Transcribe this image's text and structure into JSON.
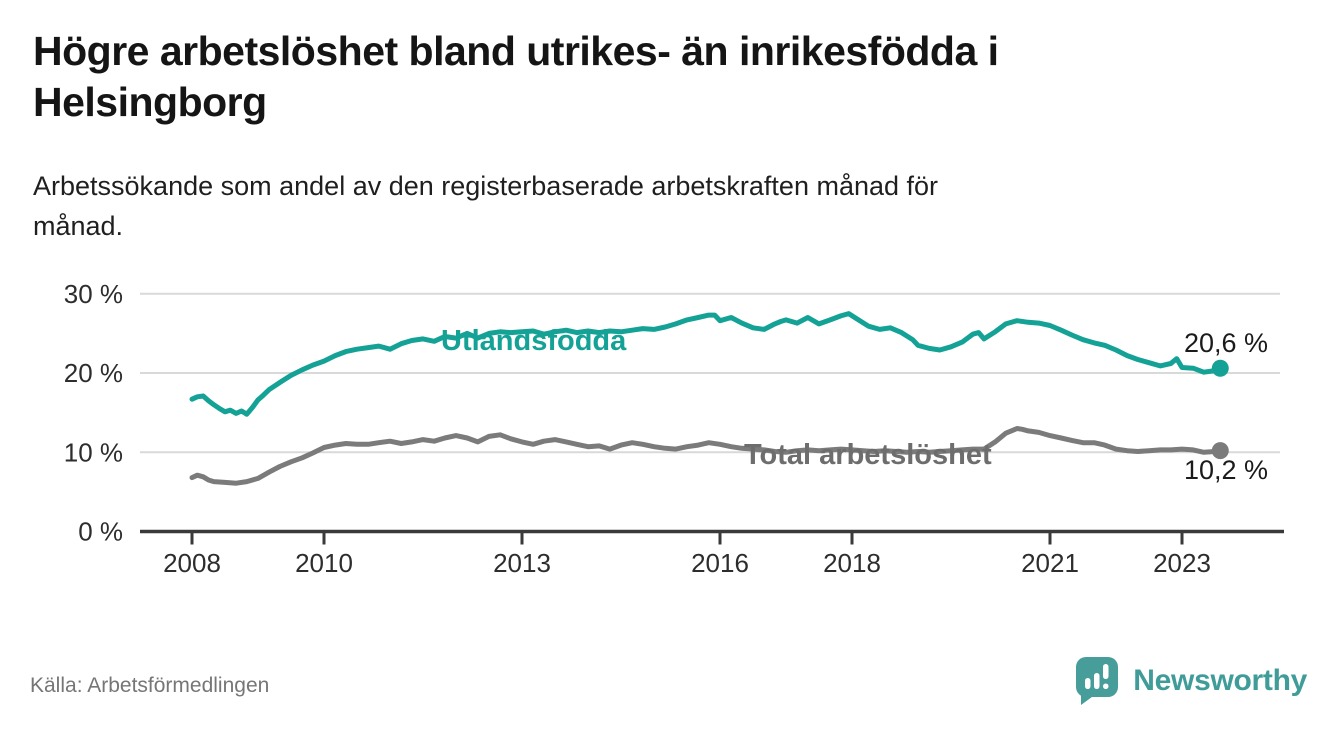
{
  "colors": {
    "teal": "#14a296",
    "gray": "#7b7b7b",
    "gray_label": "#6d6d6d",
    "grid": "#d9d9d9",
    "axis": "#3a3a3a",
    "value_label": "#1b1b1b",
    "logo_teal": "#479d99"
  },
  "footer": {
    "source": "Källa: Arbetsförmedlingen",
    "brand": "Newsworthy"
  },
  "chart_data": {
    "type": "line",
    "title": "Högre arbetslöshet bland utrikes- än inrikesfödda i Helsingborg",
    "title_lines": [
      "Högre arbetslöshet bland utrikes- än inrikesfödda i",
      "Helsingborg"
    ],
    "subtitle": "Arbetssökande som andel av den registerbaserade arbetskraften månad för månad.",
    "subtitle_lines": [
      "Arbetssökande som andel av den registerbaserade arbetskraften månad för",
      "månad."
    ],
    "xlabel": "",
    "ylabel": "",
    "x_ticks": [
      2008,
      2010,
      2013,
      2016,
      2018,
      2021,
      2023
    ],
    "y_ticks": [
      0,
      10,
      20,
      30
    ],
    "y_tick_suffix": " %",
    "xlim": [
      2007.5,
      2024.3
    ],
    "ylim": [
      0,
      30
    ],
    "grid": "horizontal",
    "legend_position": "inline-labels",
    "series": [
      {
        "id": "utlandsfodda",
        "name": "Utlandsfödda",
        "color": "#14a296",
        "label_color": "#14a296",
        "end_label": "20,6 %",
        "end_value": 20.6,
        "points": [
          [
            2008.0,
            16.7
          ],
          [
            2008.08,
            17.0
          ],
          [
            2008.17,
            17.1
          ],
          [
            2008.25,
            16.5
          ],
          [
            2008.33,
            16.0
          ],
          [
            2008.42,
            15.5
          ],
          [
            2008.5,
            15.1
          ],
          [
            2008.58,
            15.3
          ],
          [
            2008.67,
            14.9
          ],
          [
            2008.75,
            15.2
          ],
          [
            2008.83,
            14.8
          ],
          [
            2008.92,
            15.7
          ],
          [
            2009.0,
            16.6
          ],
          [
            2009.08,
            17.2
          ],
          [
            2009.17,
            17.9
          ],
          [
            2009.33,
            18.8
          ],
          [
            2009.5,
            19.7
          ],
          [
            2009.67,
            20.4
          ],
          [
            2009.83,
            21.0
          ],
          [
            2010.0,
            21.5
          ],
          [
            2010.17,
            22.2
          ],
          [
            2010.33,
            22.7
          ],
          [
            2010.5,
            23.0
          ],
          [
            2010.67,
            23.2
          ],
          [
            2010.83,
            23.4
          ],
          [
            2011.0,
            23.0
          ],
          [
            2011.17,
            23.7
          ],
          [
            2011.33,
            24.1
          ],
          [
            2011.5,
            24.3
          ],
          [
            2011.67,
            24.0
          ],
          [
            2011.83,
            24.6
          ],
          [
            2012.0,
            24.4
          ],
          [
            2012.17,
            25.0
          ],
          [
            2012.33,
            24.4
          ],
          [
            2012.5,
            25.0
          ],
          [
            2012.67,
            25.2
          ],
          [
            2012.83,
            25.1
          ],
          [
            2013.0,
            25.2
          ],
          [
            2013.17,
            25.3
          ],
          [
            2013.33,
            24.9
          ],
          [
            2013.5,
            25.2
          ],
          [
            2013.67,
            25.4
          ],
          [
            2013.83,
            25.1
          ],
          [
            2014.0,
            25.3
          ],
          [
            2014.17,
            25.1
          ],
          [
            2014.33,
            25.3
          ],
          [
            2014.5,
            25.2
          ],
          [
            2014.67,
            25.4
          ],
          [
            2014.83,
            25.6
          ],
          [
            2015.0,
            25.5
          ],
          [
            2015.17,
            25.8
          ],
          [
            2015.33,
            26.2
          ],
          [
            2015.5,
            26.7
          ],
          [
            2015.67,
            27.0
          ],
          [
            2015.83,
            27.3
          ],
          [
            2015.92,
            27.3
          ],
          [
            2016.0,
            26.6
          ],
          [
            2016.17,
            27.0
          ],
          [
            2016.33,
            26.3
          ],
          [
            2016.5,
            25.7
          ],
          [
            2016.67,
            25.5
          ],
          [
            2016.83,
            26.2
          ],
          [
            2016.92,
            26.5
          ],
          [
            2017.0,
            26.7
          ],
          [
            2017.17,
            26.3
          ],
          [
            2017.33,
            27.0
          ],
          [
            2017.5,
            26.2
          ],
          [
            2017.67,
            26.7
          ],
          [
            2017.83,
            27.2
          ],
          [
            2017.95,
            27.5
          ],
          [
            2018.08,
            26.8
          ],
          [
            2018.25,
            25.9
          ],
          [
            2018.42,
            25.5
          ],
          [
            2018.58,
            25.7
          ],
          [
            2018.75,
            25.1
          ],
          [
            2018.92,
            24.2
          ],
          [
            2019.0,
            23.5
          ],
          [
            2019.17,
            23.1
          ],
          [
            2019.33,
            22.9
          ],
          [
            2019.5,
            23.3
          ],
          [
            2019.67,
            23.9
          ],
          [
            2019.83,
            24.9
          ],
          [
            2019.92,
            25.1
          ],
          [
            2020.0,
            24.3
          ],
          [
            2020.17,
            25.2
          ],
          [
            2020.33,
            26.2
          ],
          [
            2020.5,
            26.6
          ],
          [
            2020.67,
            26.4
          ],
          [
            2020.83,
            26.3
          ],
          [
            2021.0,
            26.0
          ],
          [
            2021.17,
            25.4
          ],
          [
            2021.33,
            24.8
          ],
          [
            2021.5,
            24.2
          ],
          [
            2021.67,
            23.8
          ],
          [
            2021.83,
            23.5
          ],
          [
            2022.0,
            22.9
          ],
          [
            2022.17,
            22.2
          ],
          [
            2022.33,
            21.7
          ],
          [
            2022.5,
            21.3
          ],
          [
            2022.67,
            20.9
          ],
          [
            2022.83,
            21.2
          ],
          [
            2022.92,
            21.8
          ],
          [
            2023.0,
            20.7
          ],
          [
            2023.17,
            20.6
          ],
          [
            2023.33,
            20.1
          ],
          [
            2023.5,
            20.3
          ],
          [
            2023.58,
            20.6
          ]
        ]
      },
      {
        "id": "total",
        "name": "Total arbetslöshet",
        "color": "#7b7b7b",
        "label_color": "#6d6d6d",
        "end_label": "10,2 %",
        "end_value": 10.2,
        "points": [
          [
            2008.0,
            6.8
          ],
          [
            2008.08,
            7.1
          ],
          [
            2008.17,
            6.9
          ],
          [
            2008.25,
            6.5
          ],
          [
            2008.33,
            6.3
          ],
          [
            2008.5,
            6.2
          ],
          [
            2008.67,
            6.1
          ],
          [
            2008.83,
            6.3
          ],
          [
            2009.0,
            6.7
          ],
          [
            2009.17,
            7.5
          ],
          [
            2009.33,
            8.2
          ],
          [
            2009.5,
            8.8
          ],
          [
            2009.67,
            9.3
          ],
          [
            2009.83,
            9.9
          ],
          [
            2010.0,
            10.6
          ],
          [
            2010.17,
            10.9
          ],
          [
            2010.33,
            11.1
          ],
          [
            2010.5,
            11.0
          ],
          [
            2010.67,
            11.0
          ],
          [
            2010.83,
            11.2
          ],
          [
            2011.0,
            11.4
          ],
          [
            2011.17,
            11.1
          ],
          [
            2011.33,
            11.3
          ],
          [
            2011.5,
            11.6
          ],
          [
            2011.67,
            11.4
          ],
          [
            2011.83,
            11.8
          ],
          [
            2012.0,
            12.1
          ],
          [
            2012.17,
            11.8
          ],
          [
            2012.33,
            11.3
          ],
          [
            2012.5,
            12.0
          ],
          [
            2012.67,
            12.2
          ],
          [
            2012.83,
            11.7
          ],
          [
            2013.0,
            11.3
          ],
          [
            2013.17,
            11.0
          ],
          [
            2013.33,
            11.4
          ],
          [
            2013.5,
            11.6
          ],
          [
            2013.67,
            11.3
          ],
          [
            2013.83,
            11.0
          ],
          [
            2014.0,
            10.7
          ],
          [
            2014.17,
            10.8
          ],
          [
            2014.33,
            10.4
          ],
          [
            2014.5,
            10.9
          ],
          [
            2014.67,
            11.2
          ],
          [
            2014.83,
            11.0
          ],
          [
            2015.0,
            10.7
          ],
          [
            2015.17,
            10.5
          ],
          [
            2015.33,
            10.4
          ],
          [
            2015.5,
            10.7
          ],
          [
            2015.67,
            10.9
          ],
          [
            2015.83,
            11.2
          ],
          [
            2016.0,
            11.0
          ],
          [
            2016.17,
            10.7
          ],
          [
            2016.33,
            10.5
          ],
          [
            2016.5,
            10.4
          ],
          [
            2016.67,
            10.3
          ],
          [
            2016.83,
            10.1
          ],
          [
            2017.0,
            10.0
          ],
          [
            2017.17,
            10.2
          ],
          [
            2017.33,
            10.3
          ],
          [
            2017.5,
            10.2
          ],
          [
            2017.67,
            10.3
          ],
          [
            2017.83,
            10.4
          ],
          [
            2018.0,
            10.3
          ],
          [
            2018.17,
            10.2
          ],
          [
            2018.33,
            10.1
          ],
          [
            2018.5,
            10.2
          ],
          [
            2018.67,
            10.1
          ],
          [
            2018.83,
            10.0
          ],
          [
            2019.0,
            10.1
          ],
          [
            2019.17,
            10.0
          ],
          [
            2019.33,
            10.1
          ],
          [
            2019.5,
            10.2
          ],
          [
            2019.67,
            10.3
          ],
          [
            2019.83,
            10.4
          ],
          [
            2020.0,
            10.4
          ],
          [
            2020.17,
            11.3
          ],
          [
            2020.33,
            12.4
          ],
          [
            2020.5,
            13.0
          ],
          [
            2020.58,
            12.9
          ],
          [
            2020.67,
            12.7
          ],
          [
            2020.83,
            12.5
          ],
          [
            2021.0,
            12.1
          ],
          [
            2021.17,
            11.8
          ],
          [
            2021.33,
            11.5
          ],
          [
            2021.5,
            11.2
          ],
          [
            2021.67,
            11.2
          ],
          [
            2021.83,
            10.9
          ],
          [
            2022.0,
            10.4
          ],
          [
            2022.17,
            10.2
          ],
          [
            2022.33,
            10.1
          ],
          [
            2022.5,
            10.2
          ],
          [
            2022.67,
            10.3
          ],
          [
            2022.83,
            10.3
          ],
          [
            2023.0,
            10.4
          ],
          [
            2023.17,
            10.3
          ],
          [
            2023.33,
            10.0
          ],
          [
            2023.5,
            10.1
          ],
          [
            2023.58,
            10.2
          ]
        ]
      }
    ]
  }
}
